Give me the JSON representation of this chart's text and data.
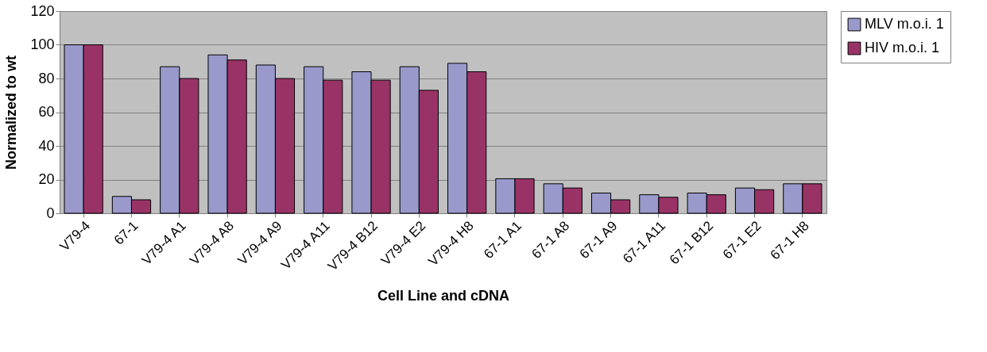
{
  "chart_data": {
    "type": "bar",
    "xlabel": "Cell Line and cDNA",
    "ylabel": "Normalized to wt",
    "categories": [
      "V79-4",
      "67-1",
      "V79-4 A1",
      "V79-4 A8",
      "V79-4 A9",
      "V79-4 A11",
      "V79-4 B12",
      "V79-4 E2",
      "V79-4 H8",
      "67-1 A1",
      "67-1 A8",
      "67-1 A9",
      "67-1 A11",
      "67-1 B12",
      "67-1 E2",
      "67-1 H8"
    ],
    "series": [
      {
        "name": "MLV m.o.i. 1",
        "color": "#9999cc",
        "values": [
          100,
          10,
          87,
          94,
          88,
          87,
          84,
          87,
          89,
          20.5,
          17.5,
          12,
          11,
          12,
          15,
          17.5
        ]
      },
      {
        "name": "HIV m.o.i. 1",
        "color": "#993366",
        "values": [
          100,
          8,
          80,
          91,
          80,
          79,
          79,
          73,
          84,
          20.5,
          15,
          8,
          9.5,
          11,
          14,
          17.5
        ]
      }
    ],
    "ylim": [
      0,
      120
    ],
    "yticks": [
      0,
      20,
      40,
      60,
      80,
      100,
      120
    ],
    "grid": "y",
    "legend": "right"
  }
}
